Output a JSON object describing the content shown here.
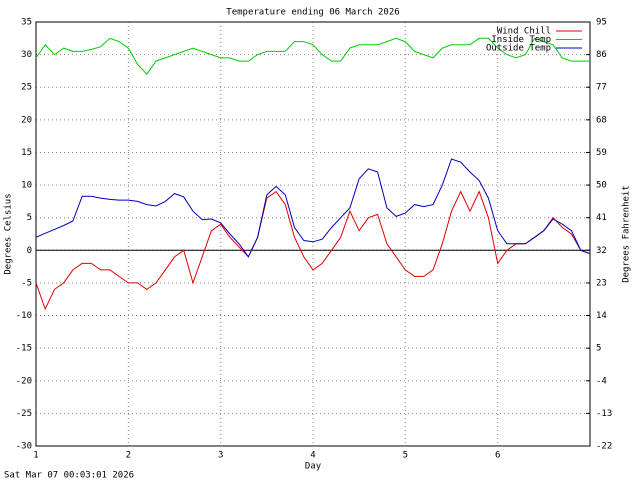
{
  "chart_data": {
    "type": "line",
    "title": "Temperature ending 06 March 2026",
    "xlabel": "Day",
    "ylabel": "Degrees Celsius",
    "y2label": "Degrees Fahrenheit",
    "footer": "Sat Mar 07 00:03:01 2026",
    "grid": true,
    "zero_line": true,
    "legend": "upper right",
    "xlim": [
      1,
      7
    ],
    "xticks": [
      1,
      2,
      3,
      4,
      5,
      6
    ],
    "ylim": [
      -30,
      35
    ],
    "yticks": [
      -30,
      -25,
      -20,
      -15,
      -10,
      -5,
      0,
      5,
      10,
      15,
      20,
      25,
      30,
      35
    ],
    "y2lim": [
      -22,
      95
    ],
    "y2ticks": [
      -22,
      -13,
      -4,
      5,
      14,
      23,
      32,
      41,
      50,
      59,
      68,
      77,
      86,
      95
    ],
    "x": [
      1.0,
      1.1,
      1.2,
      1.3,
      1.4,
      1.5,
      1.6,
      1.7,
      1.8,
      1.9,
      2.0,
      2.1,
      2.2,
      2.3,
      2.4,
      2.5,
      2.6,
      2.7,
      2.8,
      2.9,
      3.0,
      3.1,
      3.2,
      3.3,
      3.4,
      3.5,
      3.6,
      3.7,
      3.8,
      3.9,
      4.0,
      4.1,
      4.2,
      4.3,
      4.4,
      4.5,
      4.6,
      4.7,
      4.8,
      4.9,
      5.0,
      5.1,
      5.2,
      5.3,
      5.4,
      5.5,
      5.6,
      5.7,
      5.8,
      5.9,
      6.0,
      6.1,
      6.2,
      6.3,
      6.4,
      6.5,
      6.6,
      6.7,
      6.8,
      6.9,
      7.0
    ],
    "series": [
      {
        "name": "Wind Chill",
        "color": "#e00000",
        "values": [
          -5,
          -9,
          -6,
          -5,
          -3,
          -2,
          -2,
          -3,
          -3,
          -4,
          -5,
          -5,
          -6,
          -5,
          -3,
          -1,
          0,
          -5,
          -1,
          3,
          4,
          2,
          0.5,
          -1,
          2,
          8,
          9,
          7,
          2,
          -1,
          -3,
          -2,
          0,
          2,
          6,
          3,
          5,
          5.5,
          1,
          -1,
          -3,
          -4,
          -4,
          -3,
          1,
          6,
          9,
          6,
          9,
          5,
          -2,
          0,
          1,
          1,
          2,
          3,
          5,
          3.5,
          2.5,
          0,
          -0.5
        ]
      },
      {
        "name": "Inside Temp",
        "color": "#00d000",
        "values": [
          29.5,
          31.5,
          30,
          31,
          30.5,
          30.5,
          30.8,
          31.2,
          32.5,
          32,
          31,
          28.5,
          27,
          29,
          29.5,
          30,
          30.5,
          31,
          30.5,
          30,
          29.5,
          29.5,
          29,
          29,
          30,
          30.5,
          30.5,
          30.5,
          32,
          32,
          31.5,
          30,
          29,
          29,
          31,
          31.5,
          31.5,
          31.5,
          32,
          32.5,
          32,
          30.5,
          30,
          29.5,
          31,
          31.5,
          31.5,
          31.5,
          32.5,
          32.5,
          31,
          30,
          29.5,
          30,
          32.5,
          32,
          31.5,
          29.5,
          29,
          29,
          29
        ]
      },
      {
        "name": "Outside Temp",
        "color": "#0000c0",
        "values": [
          2,
          2.6,
          3.2,
          3.8,
          4.5,
          8.3,
          8.3,
          8,
          7.8,
          7.7,
          7.7,
          7.5,
          7,
          6.8,
          7.5,
          8.7,
          8.2,
          6,
          4.7,
          4.8,
          4.2,
          2.5,
          1,
          -1,
          2,
          8.5,
          9.8,
          8.5,
          3.5,
          1.5,
          1.3,
          1.7,
          3.5,
          5,
          6.5,
          11,
          12.5,
          12,
          6.5,
          5.2,
          5.7,
          7,
          6.7,
          7,
          10,
          14,
          13.5,
          12,
          10.7,
          8,
          3,
          1,
          1,
          1,
          2,
          3,
          4.8,
          4,
          3,
          0,
          -0.5
        ]
      }
    ]
  }
}
